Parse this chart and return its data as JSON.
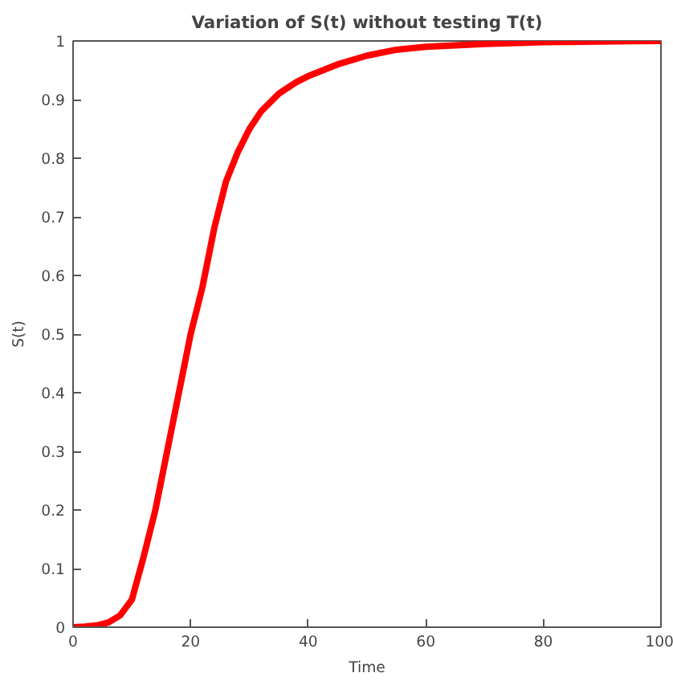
{
  "chart_data": {
    "type": "line",
    "title": "Variation of S(t) without testing T(t)",
    "xlabel": "Time",
    "ylabel": "S(t)",
    "x": [
      0,
      2,
      4,
      6,
      8,
      10,
      12,
      14,
      15,
      16,
      18,
      20,
      22,
      24,
      25,
      26,
      28,
      30,
      32,
      35,
      38,
      40,
      45,
      50,
      55,
      60,
      70,
      80,
      90,
      100
    ],
    "series": [
      {
        "color": "#ff0000",
        "values": [
          0,
          0.001,
          0.003,
          0.008,
          0.02,
          0.047,
          0.12,
          0.2,
          0.25,
          0.3,
          0.4,
          0.5,
          0.58,
          0.68,
          0.72,
          0.76,
          0.81,
          0.85,
          0.88,
          0.91,
          0.93,
          0.94,
          0.96,
          0.975,
          0.985,
          0.99,
          0.995,
          0.998,
          0.999,
          1.0
        ]
      }
    ],
    "xlim": [
      0,
      100
    ],
    "ylim": [
      0,
      1
    ],
    "xticks": [
      0,
      20,
      40,
      60,
      80,
      100
    ],
    "yticks": [
      0,
      0.1,
      0.2,
      0.3,
      0.4,
      0.5,
      0.6,
      0.7,
      0.8,
      0.9,
      1
    ],
    "grid": false,
    "marker": "none",
    "line_style": "solid"
  }
}
